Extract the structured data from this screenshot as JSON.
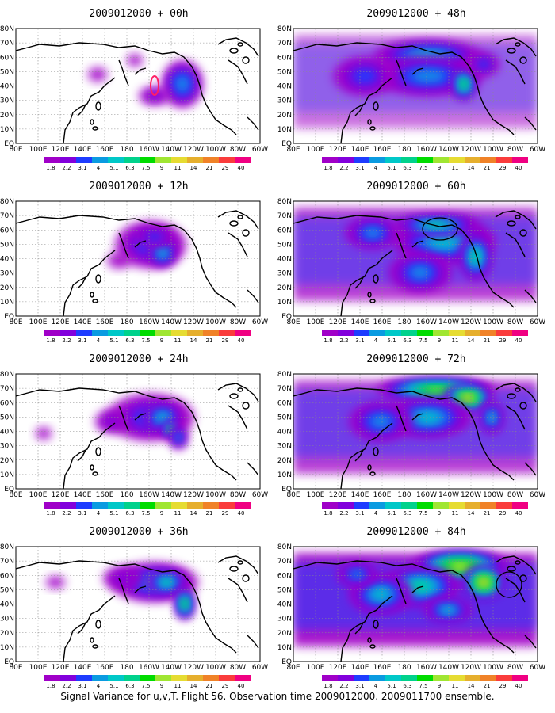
{
  "lon_labels": [
    "80E",
    "100E",
    "120E",
    "140E",
    "160E",
    "180",
    "160W",
    "140W",
    "120W",
    "100W",
    "80W",
    "60W"
  ],
  "lat_labels": [
    "EQ",
    "10N",
    "20N",
    "30N",
    "40N",
    "50N",
    "60N",
    "70N",
    "80N"
  ],
  "colorbar": {
    "labels": [
      "1.8",
      "2.2",
      "3.1",
      "4",
      "5.1",
      "6.3",
      "7.5",
      "9",
      "11",
      "14",
      "21",
      "29",
      "40"
    ],
    "colors": [
      "#a000c8",
      "#8200dc",
      "#1e3cff",
      "#0a9be1",
      "#00c8c8",
      "#00d28c",
      "#00dc00",
      "#a0e632",
      "#e6dc32",
      "#e6af2d",
      "#f08228",
      "#fa3c3c",
      "#f00082"
    ]
  },
  "panels": [
    {
      "id": "p00",
      "title": "2009012000 + 00h",
      "col": 0,
      "row": 0,
      "level": 0,
      "blobs": [
        [
          210,
          70,
          26,
          30,
          3
        ],
        [
          175,
          85,
          20,
          12,
          1
        ],
        [
          103,
          58,
          12,
          9,
          0
        ],
        [
          150,
          40,
          10,
          8,
          0
        ]
      ],
      "ovals": [
        {
          "type": "flight",
          "cx": 175,
          "cy": 72,
          "rx": 5,
          "ry": 12
        }
      ]
    },
    {
      "id": "p48",
      "title": "2009012000 + 48h",
      "col": 1,
      "row": 0,
      "level": 1,
      "blobs": [
        [
          170,
          35,
          70,
          20,
          4
        ],
        [
          170,
          60,
          70,
          25,
          3
        ],
        [
          215,
          70,
          15,
          20,
          6
        ],
        [
          90,
          60,
          40,
          25,
          2
        ],
        [
          240,
          45,
          20,
          15,
          2
        ]
      ],
      "ovals": []
    },
    {
      "id": "p12",
      "title": "2009012000 + 12h",
      "col": 0,
      "row": 1,
      "level": 0,
      "blobs": [
        [
          170,
          55,
          45,
          30,
          2
        ],
        [
          185,
          65,
          18,
          18,
          4
        ],
        [
          175,
          45,
          25,
          12,
          2
        ],
        [
          130,
          75,
          15,
          10,
          0
        ]
      ],
      "ovals": []
    },
    {
      "id": "p60",
      "title": "2009012000 + 60h",
      "col": 1,
      "row": 1,
      "level": 2,
      "blobs": [
        [
          190,
          50,
          65,
          30,
          4
        ],
        [
          160,
          90,
          40,
          25,
          3
        ],
        [
          230,
          70,
          20,
          30,
          5
        ],
        [
          100,
          40,
          35,
          20,
          3
        ],
        [
          180,
          30,
          55,
          12,
          5
        ]
      ],
      "ovals": [
        {
          "type": "black",
          "cx": 185,
          "cy": 35,
          "rx": 22,
          "ry": 14
        }
      ]
    },
    {
      "id": "p24",
      "title": "2009012000 + 24h",
      "col": 0,
      "row": 2,
      "level": 0,
      "blobs": [
        [
          170,
          55,
          55,
          30,
          2
        ],
        [
          185,
          55,
          25,
          18,
          4
        ],
        [
          195,
          70,
          10,
          10,
          6
        ],
        [
          205,
          80,
          12,
          15,
          3
        ],
        [
          120,
          60,
          20,
          15,
          1
        ],
        [
          35,
          75,
          10,
          8,
          0
        ]
      ],
      "ovals": []
    },
    {
      "id": "p72",
      "title": "2009012000 + 72h",
      "col": 1,
      "row": 2,
      "level": 2,
      "blobs": [
        [
          180,
          20,
          75,
          15,
          7
        ],
        [
          220,
          30,
          30,
          15,
          9
        ],
        [
          170,
          55,
          55,
          25,
          4
        ],
        [
          110,
          60,
          40,
          25,
          3
        ],
        [
          250,
          55,
          15,
          20,
          4
        ]
      ],
      "ovals": []
    },
    {
      "id": "p36",
      "title": "2009012000 + 36h",
      "col": 0,
      "row": 3,
      "level": 0,
      "blobs": [
        [
          175,
          45,
          55,
          25,
          3
        ],
        [
          190,
          45,
          25,
          15,
          5
        ],
        [
          213,
          72,
          12,
          20,
          6
        ],
        [
          135,
          40,
          25,
          15,
          1
        ],
        [
          50,
          45,
          12,
          8,
          0
        ]
      ],
      "ovals": []
    },
    {
      "id": "p84",
      "title": "2009012000 + 84h",
      "col": 1,
      "row": 3,
      "level": 3,
      "blobs": [
        [
          210,
          25,
          60,
          20,
          8
        ],
        [
          240,
          45,
          25,
          20,
          9
        ],
        [
          160,
          50,
          50,
          25,
          5
        ],
        [
          110,
          60,
          40,
          25,
          4
        ],
        [
          80,
          35,
          25,
          15,
          3
        ],
        [
          195,
          80,
          30,
          15,
          4
        ]
      ],
      "ovals": [
        {
          "type": "black",
          "cx": 272,
          "cy": 48,
          "rx": 16,
          "ry": 16
        }
      ]
    }
  ],
  "caption": "Signal Variance for u,v,T. Flight 56. Observation time 2009012000. 2009011700 ensemble."
}
